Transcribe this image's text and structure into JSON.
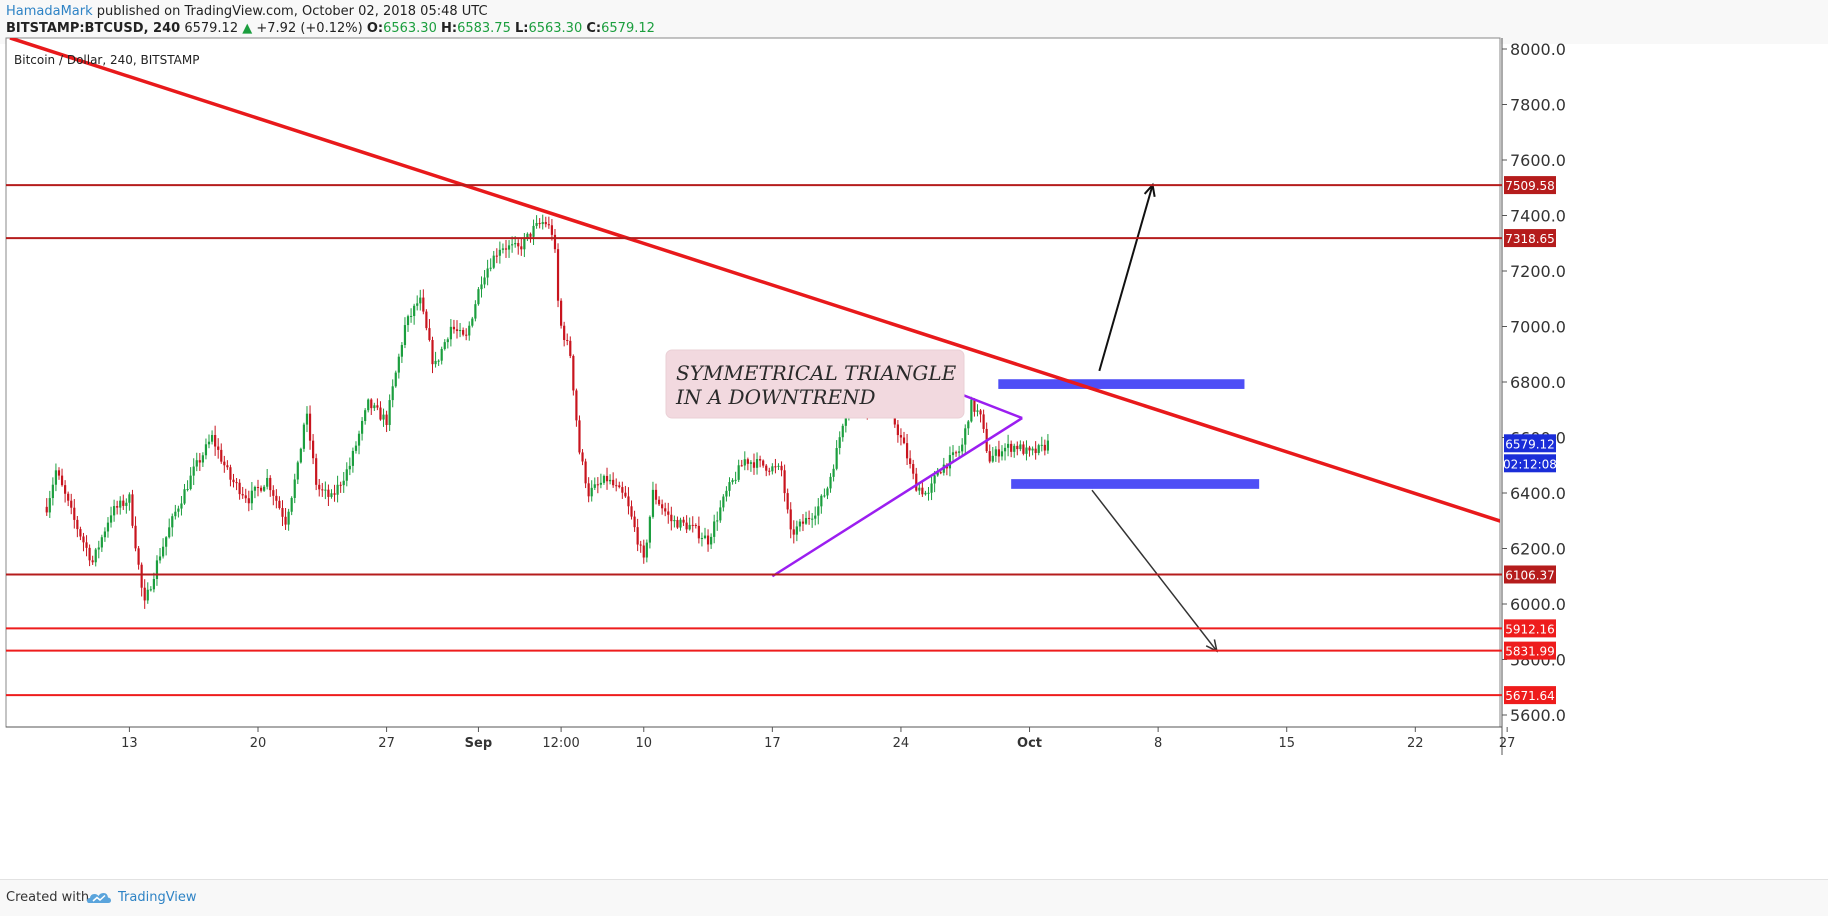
{
  "header": {
    "author": "HamadaMark",
    "published": " published on TradingView.com, October 02, 2018 05:48 UTC",
    "symbol": "BITSTAMP:BTCUSD, 240",
    "last": "6579.12",
    "change": "+7.92 (+0.12%)",
    "o_label": "O:",
    "o_val": "6563.30",
    "h_label": "H:",
    "h_val": "6583.75",
    "l_label": "L:",
    "l_val": "6563.30",
    "c_label": "C:",
    "c_val": "6579.12"
  },
  "footer": {
    "created_with": "Created with",
    "brand": "TradingView"
  },
  "colors": {
    "up": "#1b9e3e",
    "down": "#c8141e",
    "resistance_dark": "#b51c1c",
    "support_red": "#ee1c1c",
    "trend_red": "#e8191b",
    "triangle": "#9b1ef0",
    "zone": "#3b3bf5",
    "price_badge": "#1a2dd8"
  },
  "chart_data": {
    "type": "candlestick",
    "title": "Bitcoin / Dollar, 240, BITSTAMP",
    "y_axis": {
      "min": 5560,
      "max": 8050,
      "ticks": [
        "8000.0",
        "7800.0",
        "7600.0",
        "7400.0",
        "7200.0",
        "7000.0",
        "6800.0",
        "6600.0",
        "6400.0",
        "6200.0",
        "6000.0",
        "5800.0",
        "5600.0"
      ]
    },
    "x_axis": {
      "labels": [
        {
          "label": "13",
          "day": 13
        },
        {
          "label": "20",
          "day": 20
        },
        {
          "label": "27",
          "day": 27
        },
        {
          "label": "Sep",
          "day": 32,
          "bold": true
        },
        {
          "label": "12:00",
          "day": 36.5
        },
        {
          "label": "10",
          "day": 41
        },
        {
          "label": "17",
          "day": 48
        },
        {
          "label": "24",
          "day": 55
        },
        {
          "label": "Oct",
          "day": 62,
          "bold": true
        },
        {
          "label": "8",
          "day": 69
        },
        {
          "label": "15",
          "day": 76
        },
        {
          "label": "22",
          "day": 83
        },
        {
          "label": "27",
          "day": 88
        }
      ]
    },
    "price_path": [
      [
        8.5,
        6350
      ],
      [
        9,
        6480
      ],
      [
        10,
        6300
      ],
      [
        11,
        6150
      ],
      [
        12,
        6330
      ],
      [
        13,
        6380
      ],
      [
        13.8,
        5990
      ],
      [
        14.6,
        6170
      ],
      [
        15.5,
        6330
      ],
      [
        16.5,
        6480
      ],
      [
        17.5,
        6600
      ],
      [
        18.5,
        6450
      ],
      [
        19.5,
        6380
      ],
      [
        20.5,
        6450
      ],
      [
        21.5,
        6300
      ],
      [
        22.2,
        6500
      ],
      [
        22.6,
        6700
      ],
      [
        23.2,
        6420
      ],
      [
        24,
        6380
      ],
      [
        25,
        6500
      ],
      [
        26,
        6720
      ],
      [
        27,
        6660
      ],
      [
        28,
        7000
      ],
      [
        28.8,
        7100
      ],
      [
        29.6,
        6850
      ],
      [
        30.5,
        7000
      ],
      [
        31.3,
        6950
      ],
      [
        32.2,
        7180
      ],
      [
        33.2,
        7290
      ],
      [
        34.2,
        7280
      ],
      [
        35,
        7350
      ],
      [
        35.6,
        7380
      ],
      [
        36.1,
        7330
      ],
      [
        36.4,
        7020
      ],
      [
        37,
        6900
      ],
      [
        37.5,
        6550
      ],
      [
        38,
        6400
      ],
      [
        39,
        6450
      ],
      [
        40,
        6380
      ],
      [
        40.6,
        6250
      ],
      [
        41,
        6150
      ],
      [
        41.5,
        6400
      ],
      [
        42.5,
        6300
      ],
      [
        43.5,
        6280
      ],
      [
        44.5,
        6230
      ],
      [
        45.5,
        6400
      ],
      [
        46.5,
        6520
      ],
      [
        47.5,
        6500
      ],
      [
        48.5,
        6480
      ],
      [
        49,
        6250
      ],
      [
        49.8,
        6300
      ],
      [
        50.5,
        6350
      ],
      [
        51,
        6420
      ],
      [
        51.5,
        6550
      ],
      [
        52,
        6710
      ],
      [
        52.7,
        6730
      ],
      [
        53.3,
        6700
      ],
      [
        53.9,
        6740
      ],
      [
        54.5,
        6680
      ],
      [
        55.2,
        6560
      ],
      [
        55.8,
        6430
      ],
      [
        56.5,
        6390
      ],
      [
        57,
        6480
      ],
      [
        57.7,
        6520
      ],
      [
        58.3,
        6560
      ],
      [
        58.8,
        6720
      ],
      [
        59.3,
        6680
      ],
      [
        59.8,
        6520
      ],
      [
        60.5,
        6560
      ],
      [
        61.3,
        6570
      ],
      [
        62,
        6540
      ],
      [
        62.7,
        6560
      ],
      [
        63,
        6579.12
      ]
    ],
    "horizontal_levels": [
      {
        "label": "7509.58",
        "value": 7509.58,
        "style": "resistance_dark"
      },
      {
        "label": "7318.65",
        "value": 7318.65,
        "style": "resistance_dark"
      },
      {
        "label": "6106.37",
        "value": 6106.37,
        "style": "resistance_dark"
      },
      {
        "label": "5912.16",
        "value": 5912.16,
        "style": "support_red"
      },
      {
        "label": "5831.99",
        "value": 5831.99,
        "style": "support_red"
      },
      {
        "label": "5671.64",
        "value": 5671.64,
        "style": "support_red"
      }
    ],
    "current_price": {
      "value": 6579.12,
      "label": "6579.12",
      "countdown": "02:12:08"
    },
    "trendline": {
      "from": [
        6.5,
        8040
      ],
      "to": [
        88.5,
        6280
      ]
    },
    "triangle": {
      "upper": {
        "from": [
          55.0,
          6840
        ],
        "to": [
          61.6,
          6670
        ]
      },
      "lower": {
        "from": [
          48.0,
          6100
        ],
        "to": [
          61.6,
          6670
        ]
      }
    },
    "zones": [
      {
        "name": "upper-zone",
        "x_from": 60.3,
        "x_to": 73.7,
        "y_top": 6810,
        "y_bottom": 6775
      },
      {
        "name": "lower-zone",
        "x_from": 61.0,
        "x_to": 74.5,
        "y_top": 6450,
        "y_bottom": 6415
      }
    ],
    "arrows": [
      {
        "name": "breakout-up-arrow",
        "from": [
          65.8,
          6840
        ],
        "to": [
          68.7,
          7510
        ]
      },
      {
        "name": "breakdown-arrow",
        "from": [
          65.4,
          6410
        ],
        "to": [
          72.2,
          5830
        ]
      }
    ],
    "annotation": {
      "lines": [
        "SYMMETRICAL TRIANGLE",
        "IN A DOWNTREND"
      ],
      "pointer_to": [
        53.5,
        6790
      ]
    }
  }
}
